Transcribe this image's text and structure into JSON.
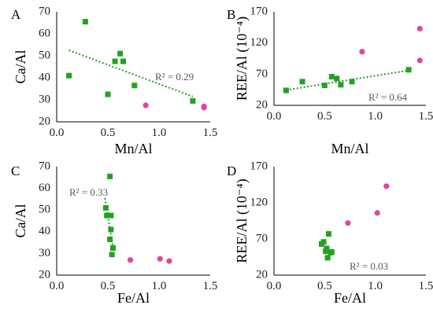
{
  "colors": {
    "green": "#22a122",
    "pink": "#e0459f",
    "trend": "#22a122"
  },
  "chart_data": [
    {
      "type": "scatter",
      "panel": "A",
      "xlabel": "Mn/Al",
      "ylabel": "Ca/Al",
      "xlim": [
        0.0,
        1.5
      ],
      "ylim": [
        20,
        70
      ],
      "xticks": [
        "0.0",
        "0.5",
        "1.0",
        "1.5"
      ],
      "yticks": [
        "20",
        "30",
        "40",
        "50",
        "60",
        "70"
      ],
      "r2_text": "R² = 0.29",
      "series": [
        {
          "color": "green",
          "marker": "square",
          "trendline": true,
          "points": [
            [
              0.12,
              41
            ],
            [
              0.28,
              65.5
            ],
            [
              0.5,
              32.5
            ],
            [
              0.57,
              47.5
            ],
            [
              0.62,
              51
            ],
            [
              0.65,
              47.5
            ],
            [
              0.76,
              36.5
            ],
            [
              1.33,
              29.5
            ]
          ]
        },
        {
          "color": "pink",
          "marker": "circle",
          "trendline": false,
          "points": [
            [
              0.87,
              27.5
            ],
            [
              1.44,
              27
            ],
            [
              1.44,
              26.5
            ]
          ]
        }
      ],
      "trend": {
        "x": [
          0.12,
          1.33
        ],
        "y": [
          52.5,
          31.5
        ]
      }
    },
    {
      "type": "scatter",
      "panel": "B",
      "xlabel": "Mn/Al",
      "ylabel": "REE/Al (10⁻⁴)",
      "xlim": [
        0.0,
        1.5
      ],
      "ylim": [
        20,
        170
      ],
      "xticks": [
        "0.0",
        "0.5",
        "1.0",
        "1.5"
      ],
      "yticks": [
        "20",
        "70",
        "120",
        "170"
      ],
      "r2_text": "R² = 0.64",
      "series": [
        {
          "color": "green",
          "marker": "square",
          "trendline": true,
          "points": [
            [
              0.12,
              44
            ],
            [
              0.28,
              58
            ],
            [
              0.5,
              52
            ],
            [
              0.57,
              66
            ],
            [
              0.62,
              63
            ],
            [
              0.66,
              53
            ],
            [
              0.77,
              58
            ],
            [
              1.33,
              77
            ]
          ]
        },
        {
          "color": "pink",
          "marker": "circle",
          "trendline": false,
          "points": [
            [
              0.87,
              106
            ],
            [
              1.44,
              143
            ],
            [
              1.44,
              92
            ]
          ]
        }
      ],
      "trend": {
        "x": [
          0.12,
          1.33
        ],
        "y": [
          44.5,
          76
        ]
      }
    },
    {
      "type": "scatter",
      "panel": "C",
      "xlabel": "Fe/Al",
      "ylabel": "Ca/Al",
      "xlim": [
        0.0,
        1.5
      ],
      "ylim": [
        20,
        70
      ],
      "xticks": [
        "0.0",
        "0.5",
        "1.0",
        "1.5"
      ],
      "yticks": [
        "20",
        "30",
        "40",
        "50",
        "60",
        "70"
      ],
      "r2_text": "R² = 0.33",
      "series": [
        {
          "color": "green",
          "marker": "square",
          "trendline": true,
          "points": [
            [
              0.52,
              65.5
            ],
            [
              0.48,
              51
            ],
            [
              0.49,
              47.5
            ],
            [
              0.53,
              47.5
            ],
            [
              0.53,
              41
            ],
            [
              0.52,
              36.5
            ],
            [
              0.55,
              32.5
            ],
            [
              0.54,
              29.5
            ]
          ]
        },
        {
          "color": "pink",
          "marker": "circle",
          "trendline": false,
          "points": [
            [
              0.72,
              27
            ],
            [
              1.01,
              27.5
            ],
            [
              1.1,
              26.5
            ]
          ]
        }
      ],
      "trend": {
        "x": [
          0.47,
          0.55
        ],
        "y": [
          55.5,
          33
        ]
      }
    },
    {
      "type": "scatter",
      "panel": "D",
      "xlabel": "Fe/Al",
      "ylabel": "REE/Al (10⁻⁴)",
      "xlim": [
        0.0,
        1.5
      ],
      "ylim": [
        20,
        170
      ],
      "xticks": [
        "0.0",
        "0.5",
        "1.0",
        "1.5"
      ],
      "yticks": [
        "20",
        "70",
        "120",
        "170"
      ],
      "r2_text": "R² = 0.03",
      "series": [
        {
          "color": "green",
          "marker": "square",
          "trendline": false,
          "points": [
            [
              0.47,
              63
            ],
            [
              0.49,
              66
            ],
            [
              0.52,
              57
            ],
            [
              0.53,
              44
            ],
            [
              0.54,
              77
            ],
            [
              0.56,
              51
            ],
            [
              0.57,
              52
            ],
            [
              0.51,
              53
            ]
          ]
        },
        {
          "color": "pink",
          "marker": "circle",
          "trendline": false,
          "points": [
            [
              0.73,
              92
            ],
            [
              1.02,
              106
            ],
            [
              1.11,
              143
            ]
          ]
        }
      ]
    }
  ]
}
